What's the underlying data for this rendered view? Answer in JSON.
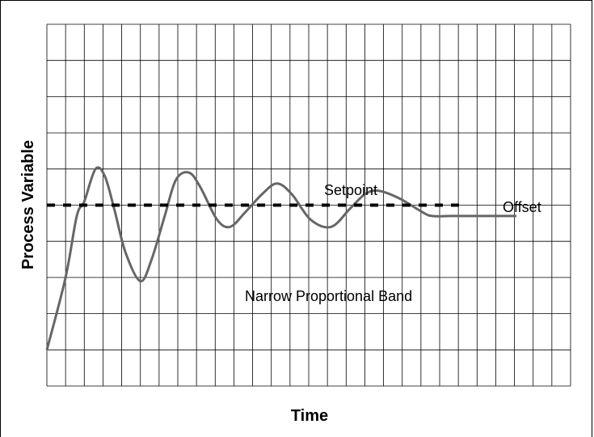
{
  "chart_data": {
    "type": "line",
    "title": "",
    "xlabel": "Time",
    "ylabel": "Process Variable",
    "grid": true,
    "legend": "none",
    "xlim": [
      0,
      28
    ],
    "ylim": [
      0,
      10
    ],
    "series": [
      {
        "name": "",
        "style": "solid",
        "color": "#666666",
        "x": [
          0,
          1,
          1.6,
          2,
          2.6,
          3.1,
          3.6,
          4.2,
          5,
          5.6,
          6.3,
          6.9,
          7.6,
          8.2,
          9.1,
          9.8,
          10.6,
          11.5,
          12.3,
          13.1,
          14.1,
          15.2,
          16.2,
          17,
          17.7,
          18.8,
          20.1,
          20.6,
          21.6,
          22.6,
          23.4,
          23.9,
          24.2,
          25.1
        ],
        "y": [
          1,
          3,
          4.7,
          5.1,
          6.0,
          5.8,
          4.9,
          3.7,
          2.9,
          3.5,
          4.7,
          5.7,
          5.9,
          5.5,
          4.6,
          4.4,
          4.8,
          5.3,
          5.6,
          5.3,
          4.6,
          4.4,
          4.9,
          5.3,
          5.4,
          5.2,
          4.8,
          4.7,
          4.7,
          4.7,
          4.7,
          4.7,
          4.7,
          4.7
        ]
      },
      {
        "name": "",
        "style": "dashed",
        "color": "#000000",
        "x": [
          0,
          22.2
        ],
        "y": [
          5,
          5
        ]
      }
    ],
    "annotations": [
      {
        "text": "Setpoint",
        "x": 14.6,
        "y": 5.35
      },
      {
        "text": "Offset",
        "x": 24.8,
        "y": 4.8
      },
      {
        "text": "Narrow Proportional Band",
        "x": 10.5,
        "y": 2.3
      }
    ]
  }
}
